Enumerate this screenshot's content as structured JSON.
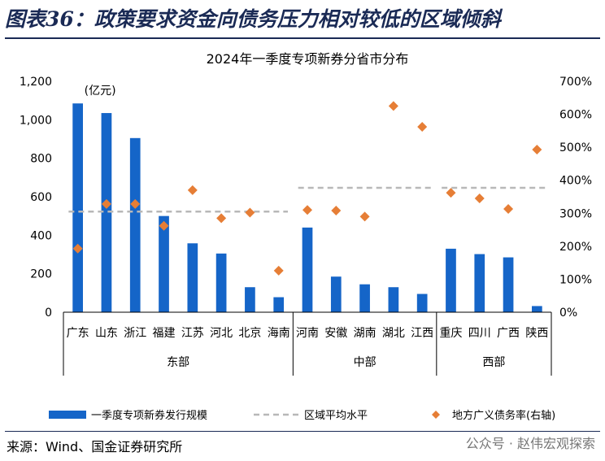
{
  "figure_title": "图表36：政策要求资金向债务压力相对较低的区域倾斜",
  "source": "来源：Wind、国金证券研究所",
  "watermark": "公众号 · 赵伟宏观探索",
  "chart_data": {
    "type": "bar",
    "title": "2024年一季度专项新券分省市分布",
    "unit_label": "(亿元)",
    "categories": [
      "广东",
      "山东",
      "浙江",
      "福建",
      "江苏",
      "河北",
      "北京",
      "海南",
      "河南",
      "安徽",
      "湖南",
      "湖北",
      "江西",
      "重庆",
      "四川",
      "广西",
      "陕西"
    ],
    "groups": [
      {
        "name": "东部",
        "start": 0,
        "end": 7
      },
      {
        "name": "中部",
        "start": 8,
        "end": 12
      },
      {
        "name": "西部",
        "start": 13,
        "end": 16
      }
    ],
    "ylim_left": [
      0,
      1200
    ],
    "yticks_left": [
      0,
      200,
      400,
      600,
      800,
      1000,
      1200
    ],
    "ytick_labels_left": [
      "0",
      "200",
      "400",
      "600",
      "800",
      "1,000",
      "1,200"
    ],
    "ylim_right": [
      0,
      700
    ],
    "yticks_right": [
      0,
      100,
      200,
      300,
      400,
      500,
      600,
      700
    ],
    "ytick_labels_right": [
      "0%",
      "100%",
      "200%",
      "300%",
      "400%",
      "500%",
      "600%",
      "700%"
    ],
    "series": [
      {
        "name": "一季度专项新券发行规模",
        "kind": "bar",
        "axis": "left",
        "color": "#1565c8",
        "values": [
          1085,
          1035,
          905,
          500,
          358,
          305,
          130,
          78,
          440,
          185,
          145,
          130,
          95,
          330,
          302,
          285,
          32
        ]
      },
      {
        "name": "区域平均水平",
        "kind": "dashed",
        "axis": "right",
        "color": "#b8b8b8",
        "segments": [
          {
            "start": 0,
            "end": 7,
            "value": 305
          },
          {
            "start": 8,
            "end": 12,
            "value": 377
          },
          {
            "start": 13,
            "end": 16,
            "value": 377
          }
        ]
      },
      {
        "name": "地方广义债务率(右轴)",
        "kind": "scatter",
        "axis": "right",
        "color": "#e67e36",
        "values": [
          193,
          328,
          328,
          262,
          370,
          285,
          302,
          126,
          310,
          308,
          290,
          625,
          562,
          362,
          345,
          313,
          493
        ]
      }
    ]
  }
}
